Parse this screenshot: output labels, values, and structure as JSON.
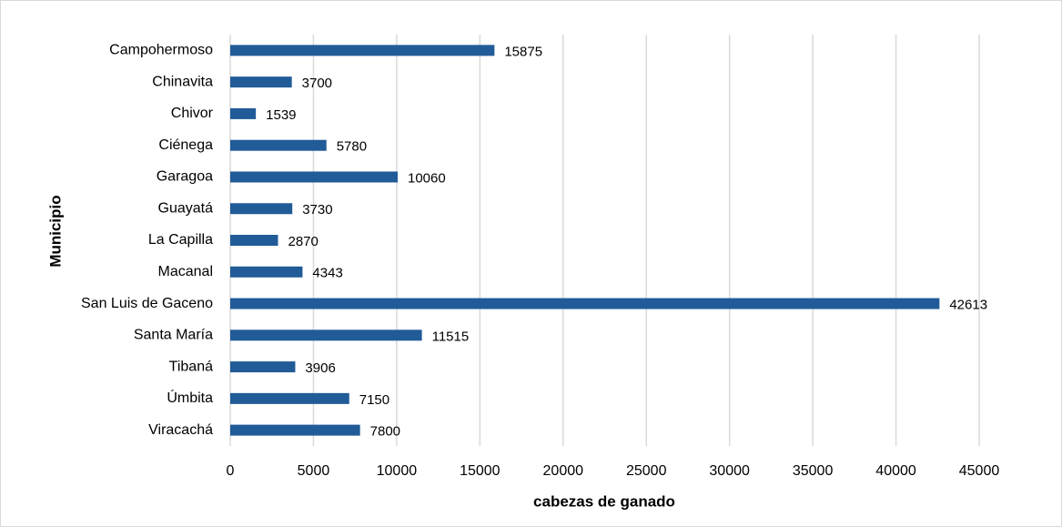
{
  "chart_data": {
    "type": "bar",
    "orientation": "horizontal",
    "xlabel": "cabezas de ganado",
    "ylabel": "Municipio",
    "categories": [
      "Campohermoso",
      "Chinavita",
      "Chivor",
      "Ciénega",
      "Garagoa",
      "Guayatá",
      "La Capilla",
      "Macanal",
      "San Luis de Gaceno",
      "Santa María",
      "Tibaná",
      "Úmbita",
      "Viracachá"
    ],
    "values": [
      15875,
      3700,
      1539,
      5780,
      10060,
      3730,
      2870,
      4343,
      42613,
      11515,
      3906,
      7150,
      7800
    ],
    "color": "#215b98",
    "xlim": [
      0,
      45000
    ],
    "xticks": [
      0,
      5000,
      10000,
      15000,
      20000,
      25000,
      30000,
      35000,
      40000,
      45000
    ],
    "grid": true
  }
}
